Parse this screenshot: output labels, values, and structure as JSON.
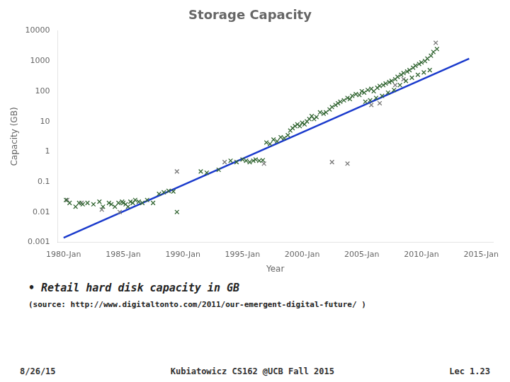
{
  "chart_data": {
    "type": "scatter",
    "title": "Storage Capacity",
    "x_label": "Year",
    "y_label": "Capacity (GB)",
    "log": "y",
    "grid": false,
    "xlim": [
      1979.5,
      2016
    ],
    "ylim": [
      0.001,
      10000
    ],
    "xticks": [
      {
        "value": 1980,
        "label": "1980-Jan"
      },
      {
        "value": 1985,
        "label": "1985-Jan"
      },
      {
        "value": 1990,
        "label": "1990-Jan"
      },
      {
        "value": 1995,
        "label": "1995-Jan"
      },
      {
        "value": 2000,
        "label": "2000-Jan"
      },
      {
        "value": 2005,
        "label": "2005-Jan"
      },
      {
        "value": 2010,
        "label": "2010-Jan"
      },
      {
        "value": 2015,
        "label": "2015-Jan"
      }
    ],
    "yticks": [
      0.001,
      0.01,
      0.1,
      1,
      10,
      100,
      1000,
      10000
    ],
    "series": [
      {
        "type": "scatter",
        "color": "#336633",
        "marker": "x",
        "x": [
          1980.2,
          1980.5,
          1981.0,
          1981.3,
          1981.6,
          1982.0,
          1982.5,
          1983.0,
          1983.3,
          1983.8,
          1984.0,
          1984.3,
          1984.6,
          1984.9,
          1985.0,
          1985.2,
          1985.4,
          1985.6,
          1985.8,
          1986.0,
          1986.3,
          1986.6,
          1987.0,
          1987.5,
          1988.0,
          1988.4,
          1988.8,
          1989.2,
          1989.5,
          1991.5,
          1992.0,
          1993.0,
          1994.0,
          1994.5,
          1995.0,
          1995.3,
          1995.6,
          1995.9,
          1996.1,
          1996.4,
          1996.7,
          1997.0,
          1997.3,
          1997.6,
          1997.9,
          1998.2,
          1998.5,
          1998.8,
          1999.0,
          1999.2,
          1999.4,
          1999.6,
          1999.8,
          2000.0,
          2000.2,
          2000.4,
          2000.6,
          2000.8,
          2001.0,
          2001.2,
          2001.5,
          2001.8,
          2002.0,
          2002.3,
          2002.5,
          2002.8,
          2003.0,
          2003.2,
          2003.5,
          2003.8,
          2004.0,
          2004.2,
          2004.5,
          2004.8,
          2005.0,
          2005.2,
          2005.5,
          2005.8,
          2006.0,
          2006.3,
          2006.5,
          2006.8,
          2007.0,
          2007.3,
          2007.5,
          2007.8,
          2008.0,
          2008.3,
          2008.5,
          2008.8,
          2009.0,
          2009.3,
          2009.5,
          2009.8,
          2010.0,
          2010.3,
          2010.5,
          2010.8,
          2011.0,
          2011.3,
          2005.3,
          2005.7,
          2006.2,
          2006.7,
          2007.2,
          2007.7,
          2008.2,
          2008.7,
          2009.2,
          2009.7,
          2010.2,
          2010.7
        ],
        "values": [
          0.025,
          0.02,
          0.015,
          0.02,
          0.018,
          0.02,
          0.018,
          0.022,
          0.015,
          0.02,
          0.018,
          0.015,
          0.02,
          0.022,
          0.02,
          0.018,
          0.015,
          0.022,
          0.02,
          0.025,
          0.022,
          0.02,
          0.025,
          0.02,
          0.04,
          0.045,
          0.05,
          0.048,
          0.01,
          0.22,
          0.2,
          0.25,
          0.5,
          0.45,
          0.55,
          0.5,
          0.45,
          0.5,
          0.55,
          0.5,
          0.52,
          2.0,
          1.8,
          2.5,
          2.2,
          3.0,
          2.8,
          3.5,
          5.0,
          6.0,
          7.0,
          8.0,
          7.0,
          9.0,
          8.0,
          10.0,
          12.0,
          15.0,
          12.0,
          14.0,
          20.0,
          18.0,
          20.0,
          25.0,
          30.0,
          35.0,
          40.0,
          45.0,
          50.0,
          60.0,
          55.0,
          70.0,
          80.0,
          75.0,
          100.0,
          90.0,
          110.0,
          120.0,
          100.0,
          130.0,
          150.0,
          160.0,
          180.0,
          200.0,
          220.0,
          250.0,
          300.0,
          350.0,
          400.0,
          450.0,
          500.0,
          600.0,
          700.0,
          800.0,
          900.0,
          1000.0,
          1200.0,
          1500.0,
          2000.0,
          2500.0,
          45.0,
          50.0,
          60.0,
          70.0,
          90.0,
          110.0,
          160.0,
          220.0,
          280.0,
          350.0,
          420.0,
          500.0
        ]
      },
      {
        "type": "scatter",
        "color": "#777777",
        "marker": "x",
        "x": [
          1980.3,
          1981.5,
          1983.2,
          1984.7,
          1989.5,
          1993.5,
          1996.8,
          2002.5,
          2003.8,
          2005.8,
          2006.5,
          2007.8,
          2008.5,
          2011.2
        ],
        "values": [
          0.025,
          0.02,
          0.012,
          0.01,
          0.22,
          0.45,
          0.4,
          0.45,
          0.4,
          35.0,
          40.0,
          160.0,
          250.0,
          4000.0
        ]
      },
      {
        "type": "line",
        "color": "#1a3acc",
        "line_style": "solid",
        "x": [
          1980,
          2014
        ],
        "values": [
          0.0014,
          1200
        ]
      }
    ],
    "annotations": [
      "• Retail hard disk capacity in GB",
      "(source: http://www.digitaltonto.com/2011/our-emergent-digital-future/ )"
    ],
    "footer": [
      "8/26/15",
      "Kubiatowicz CS162 @UCB Fall 2015",
      "Lec 1.23"
    ]
  }
}
